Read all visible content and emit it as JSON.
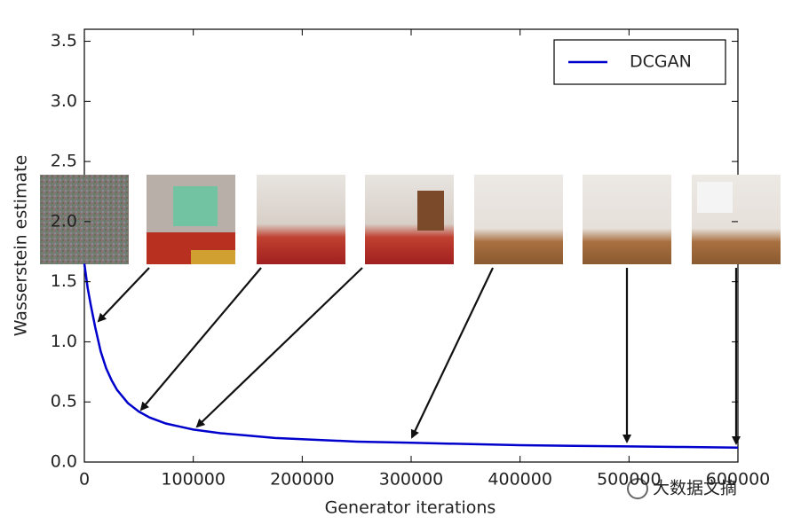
{
  "chart_data": {
    "type": "line",
    "xlabel": "Generator iterations",
    "ylabel": "Wasserstein estimate",
    "x": [
      0,
      3000,
      6000,
      10000,
      15000,
      20000,
      25000,
      30000,
      40000,
      50000,
      60000,
      75000,
      90000,
      100000,
      125000,
      150000,
      175000,
      200000,
      250000,
      300000,
      350000,
      400000,
      450000,
      500000,
      550000,
      600000
    ],
    "series": [
      {
        "name": "DCGAN",
        "color": "#0000cc",
        "values": [
          1.65,
          1.45,
          1.3,
          1.12,
          0.92,
          0.78,
          0.68,
          0.6,
          0.49,
          0.42,
          0.37,
          0.32,
          0.29,
          0.27,
          0.24,
          0.22,
          0.2,
          0.19,
          0.17,
          0.16,
          0.15,
          0.14,
          0.135,
          0.13,
          0.125,
          0.12
        ]
      }
    ],
    "xlim": [
      0,
      600000
    ],
    "ylim": [
      0,
      3.6
    ],
    "xticks": [
      0,
      100000,
      200000,
      300000,
      400000,
      500000,
      600000
    ],
    "yticks": [
      {
        "value": 0,
        "label": "0.0"
      },
      0.5,
      {
        "value": 1,
        "label": "1.0"
      },
      1.5,
      {
        "value": 2,
        "label": "2.0"
      },
      2.5,
      {
        "value": 3,
        "label": "3.0"
      },
      3.5
    ],
    "legend": "upper right",
    "watermark": "大数据文摘"
  }
}
